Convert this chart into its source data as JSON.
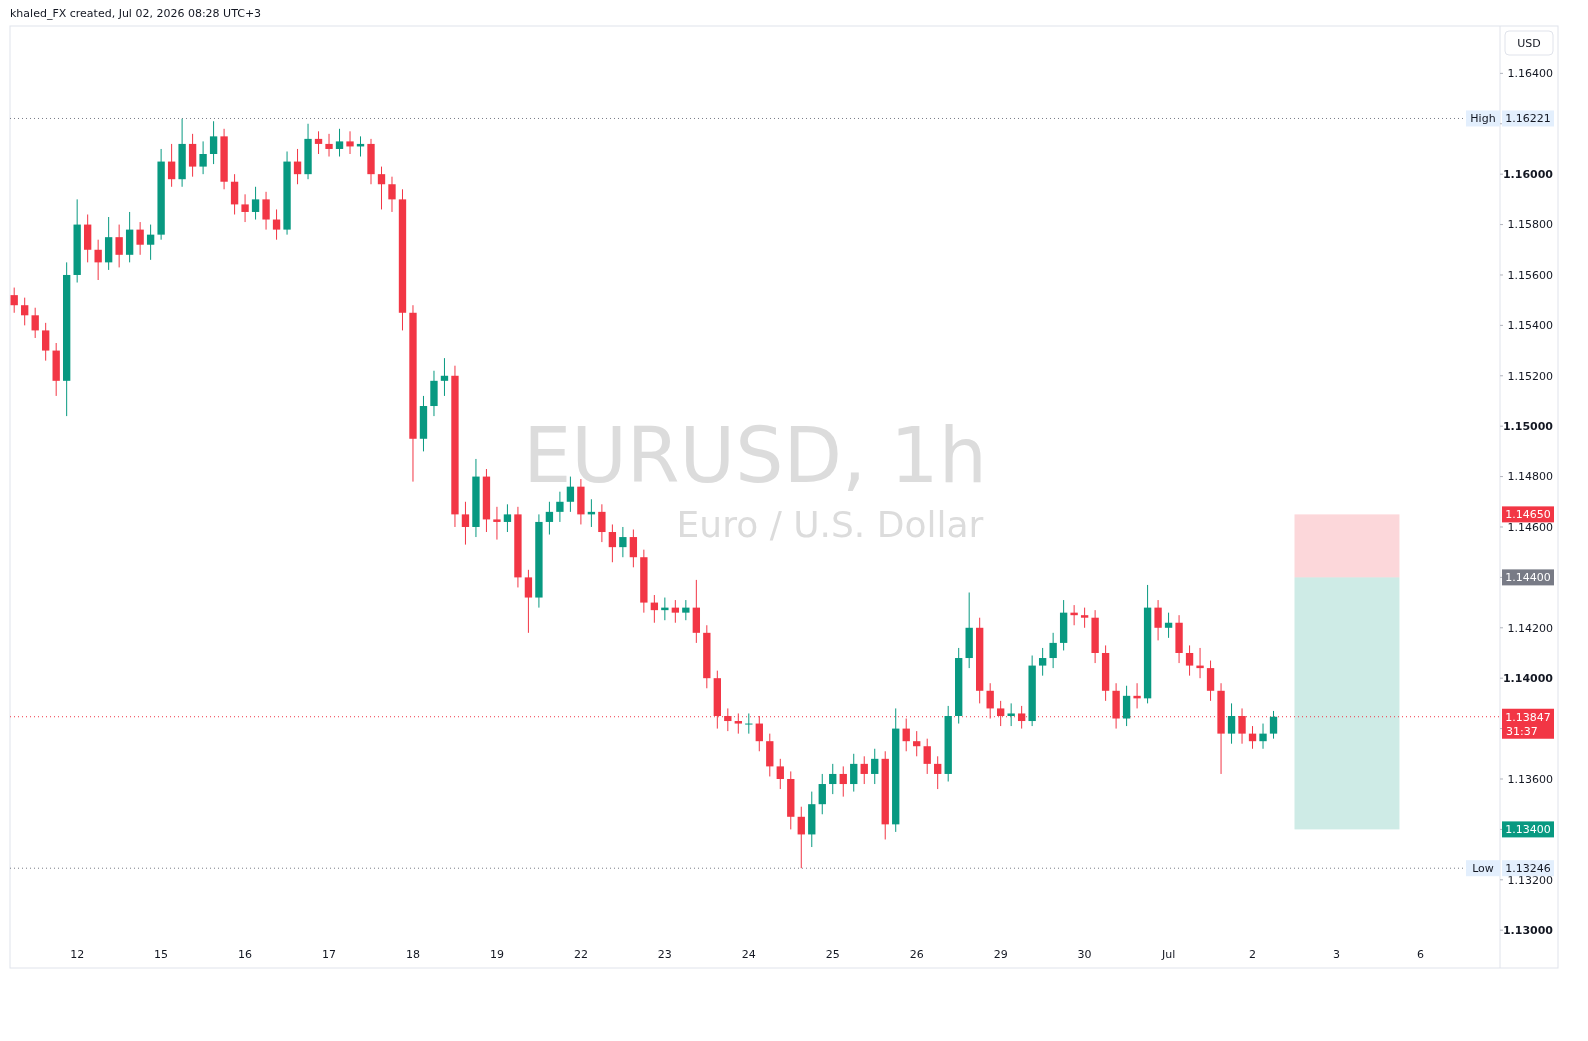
{
  "chart_data": {
    "type": "candlestick",
    "title": "EURUSD, 1h",
    "subtitle": "Euro / U.S. Dollar",
    "annotations": [
      "khaled_FX created, Jul 02, 2026 08:28 UTC+3",
      "USD",
      {
        "text": "High",
        "y": 1.16221
      },
      {
        "text": "Low",
        "y": 1.13246
      },
      "31:37",
      "1.14400",
      "1.14650",
      "1.13400"
    ],
    "categories": [
      null,
      null,
      null,
      null,
      null,
      null,
      "12",
      null,
      null,
      null,
      null,
      null,
      null,
      null,
      "15",
      null,
      null,
      null,
      null,
      null,
      null,
      null,
      "16",
      null,
      null,
      null,
      null,
      null,
      null,
      null,
      "17",
      null,
      null,
      null,
      null,
      null,
      null,
      null,
      "18",
      null,
      null,
      null,
      null,
      null,
      null,
      null,
      "19",
      null,
      null,
      null,
      null,
      null,
      null,
      null,
      "22",
      null,
      null,
      null,
      null,
      null,
      null,
      null,
      "23",
      null,
      null,
      null,
      null,
      null,
      null,
      null,
      "24",
      null,
      null,
      null,
      null,
      null,
      null,
      null,
      "25",
      null,
      null,
      null,
      null,
      null,
      null,
      null,
      "26",
      null,
      null,
      null,
      null,
      null,
      null,
      null,
      "29",
      null,
      null,
      null,
      null,
      null,
      null,
      null,
      "30",
      null,
      null,
      null,
      null,
      null,
      null,
      null,
      "Jul",
      null,
      null,
      null,
      null,
      null,
      null,
      null,
      "2",
      null,
      null,
      null,
      null,
      null,
      null,
      null,
      "3",
      null,
      null,
      null,
      null,
      null,
      null,
      null,
      "6",
      null,
      null,
      null,
      null,
      null,
      null,
      null
    ],
    "ohlc": [
      [
        1.1552,
        1.1555,
        1.1545,
        1.1548
      ],
      [
        1.1548,
        1.1551,
        1.154,
        1.1544
      ],
      [
        1.1544,
        1.1547,
        1.1535,
        1.1538
      ],
      [
        1.1538,
        1.1541,
        1.1526,
        1.153
      ],
      [
        1.153,
        1.1533,
        1.1512,
        1.1518
      ],
      [
        1.1518,
        1.1565,
        1.1504,
        1.156
      ],
      [
        1.156,
        1.159,
        1.1557,
        1.158
      ],
      [
        1.158,
        1.1584,
        1.1565,
        1.157
      ],
      [
        1.157,
        1.1574,
        1.1558,
        1.1565
      ],
      [
        1.1565,
        1.1583,
        1.1562,
        1.1575
      ],
      [
        1.1575,
        1.158,
        1.1563,
        1.1568
      ],
      [
        1.1568,
        1.1585,
        1.1565,
        1.1578
      ],
      [
        1.1578,
        1.1581,
        1.1568,
        1.1572
      ],
      [
        1.1572,
        1.158,
        1.1566,
        1.1576
      ],
      [
        1.1576,
        1.161,
        1.1574,
        1.1605
      ],
      [
        1.1605,
        1.1612,
        1.1595,
        1.1598
      ],
      [
        1.1598,
        1.1622,
        1.1595,
        1.1612
      ],
      [
        1.1612,
        1.1616,
        1.1599,
        1.1603
      ],
      [
        1.1603,
        1.1613,
        1.16,
        1.1608
      ],
      [
        1.1608,
        1.1621,
        1.1604,
        1.1615
      ],
      [
        1.1615,
        1.1618,
        1.1594,
        1.1597
      ],
      [
        1.1597,
        1.16,
        1.1584,
        1.1588
      ],
      [
        1.1588,
        1.1592,
        1.1581,
        1.1585
      ],
      [
        1.1585,
        1.1595,
        1.1582,
        1.159
      ],
      [
        1.159,
        1.1593,
        1.1578,
        1.1582
      ],
      [
        1.1582,
        1.1586,
        1.1574,
        1.1578
      ],
      [
        1.1578,
        1.1609,
        1.1576,
        1.1605
      ],
      [
        1.1605,
        1.161,
        1.1596,
        1.16
      ],
      [
        1.16,
        1.162,
        1.1598,
        1.1614
      ],
      [
        1.1614,
        1.1617,
        1.1608,
        1.1612
      ],
      [
        1.1612,
        1.1616,
        1.1607,
        1.161
      ],
      [
        1.161,
        1.1618,
        1.1607,
        1.1613
      ],
      [
        1.1613,
        1.1617,
        1.1608,
        1.1611
      ],
      [
        1.1611,
        1.1615,
        1.1607,
        1.1612
      ],
      [
        1.1612,
        1.1614,
        1.1596,
        1.16
      ],
      [
        1.16,
        1.1603,
        1.1586,
        1.1596
      ],
      [
        1.1596,
        1.1599,
        1.1585,
        1.159
      ],
      [
        1.159,
        1.1594,
        1.1538,
        1.1545
      ],
      [
        1.1545,
        1.1548,
        1.1478,
        1.1495
      ],
      [
        1.1495,
        1.1512,
        1.149,
        1.1508
      ],
      [
        1.1508,
        1.1522,
        1.1504,
        1.1518
      ],
      [
        1.1518,
        1.1527,
        1.1512,
        1.152
      ],
      [
        1.152,
        1.1524,
        1.146,
        1.1465
      ],
      [
        1.1465,
        1.147,
        1.1453,
        1.146
      ],
      [
        1.146,
        1.1487,
        1.1456,
        1.148
      ],
      [
        1.148,
        1.1483,
        1.1458,
        1.1463
      ],
      [
        1.1463,
        1.1468,
        1.1455,
        1.1462
      ],
      [
        1.1462,
        1.1469,
        1.1458,
        1.1465
      ],
      [
        1.1465,
        1.1468,
        1.1436,
        1.144
      ],
      [
        1.144,
        1.1443,
        1.1418,
        1.1432
      ],
      [
        1.1432,
        1.1465,
        1.1428,
        1.1462
      ],
      [
        1.1462,
        1.147,
        1.1457,
        1.1466
      ],
      [
        1.1466,
        1.1474,
        1.1462,
        1.147
      ],
      [
        1.147,
        1.148,
        1.1466,
        1.1476
      ],
      [
        1.1476,
        1.1479,
        1.1461,
        1.1465
      ],
      [
        1.1465,
        1.1471,
        1.146,
        1.1466
      ],
      [
        1.1466,
        1.1469,
        1.1454,
        1.1458
      ],
      [
        1.1458,
        1.1461,
        1.1446,
        1.1452
      ],
      [
        1.1452,
        1.146,
        1.1448,
        1.1456
      ],
      [
        1.1456,
        1.1459,
        1.1444,
        1.1448
      ],
      [
        1.1448,
        1.1451,
        1.1426,
        1.143
      ],
      [
        1.143,
        1.1433,
        1.1422,
        1.1427
      ],
      [
        1.1427,
        1.1432,
        1.1423,
        1.1428
      ],
      [
        1.1428,
        1.1431,
        1.1422,
        1.1426
      ],
      [
        1.1426,
        1.1431,
        1.1423,
        1.1428
      ],
      [
        1.1428,
        1.1439,
        1.1414,
        1.1418
      ],
      [
        1.1418,
        1.1421,
        1.1396,
        1.14
      ],
      [
        1.14,
        1.1403,
        1.138,
        1.1385
      ],
      [
        1.1385,
        1.1388,
        1.1379,
        1.1383
      ],
      [
        1.1383,
        1.1386,
        1.1378,
        1.1382
      ],
      [
        1.1382,
        1.1386,
        1.1378,
        1.1382
      ],
      [
        1.1382,
        1.1385,
        1.1371,
        1.1375
      ],
      [
        1.1375,
        1.1378,
        1.1361,
        1.1365
      ],
      [
        1.1365,
        1.1368,
        1.1356,
        1.136
      ],
      [
        1.136,
        1.1363,
        1.134,
        1.1345
      ],
      [
        1.1345,
        1.1349,
        1.13246,
        1.1338
      ],
      [
        1.1338,
        1.1355,
        1.1333,
        1.135
      ],
      [
        1.135,
        1.1362,
        1.1346,
        1.1358
      ],
      [
        1.1358,
        1.1366,
        1.1354,
        1.1362
      ],
      [
        1.1362,
        1.1365,
        1.1353,
        1.1358
      ],
      [
        1.1358,
        1.137,
        1.1355,
        1.1366
      ],
      [
        1.1366,
        1.1369,
        1.1358,
        1.1362
      ],
      [
        1.1362,
        1.1372,
        1.1358,
        1.1368
      ],
      [
        1.1368,
        1.1371,
        1.1336,
        1.1342
      ],
      [
        1.1342,
        1.1388,
        1.1339,
        1.138
      ],
      [
        1.138,
        1.1384,
        1.1371,
        1.1375
      ],
      [
        1.1375,
        1.1379,
        1.1369,
        1.1373
      ],
      [
        1.1373,
        1.1376,
        1.1362,
        1.1366
      ],
      [
        1.1366,
        1.1369,
        1.1356,
        1.1362
      ],
      [
        1.1362,
        1.1389,
        1.1359,
        1.1385
      ],
      [
        1.1385,
        1.1412,
        1.1382,
        1.1408
      ],
      [
        1.1408,
        1.1434,
        1.1404,
        1.142
      ],
      [
        1.142,
        1.1424,
        1.139,
        1.1395
      ],
      [
        1.1395,
        1.1398,
        1.1384,
        1.1388
      ],
      [
        1.1388,
        1.1391,
        1.1381,
        1.1385
      ],
      [
        1.1385,
        1.139,
        1.1381,
        1.1386
      ],
      [
        1.1386,
        1.1389,
        1.138,
        1.1383
      ],
      [
        1.1383,
        1.1409,
        1.1381,
        1.1405
      ],
      [
        1.1405,
        1.1412,
        1.1401,
        1.1408
      ],
      [
        1.1408,
        1.1418,
        1.1404,
        1.1414
      ],
      [
        1.1414,
        1.1431,
        1.1411,
        1.1426
      ],
      [
        1.1426,
        1.1429,
        1.1421,
        1.1425
      ],
      [
        1.1425,
        1.1428,
        1.142,
        1.1424
      ],
      [
        1.1424,
        1.1427,
        1.1406,
        1.141
      ],
      [
        1.141,
        1.1413,
        1.1391,
        1.1395
      ],
      [
        1.1395,
        1.1398,
        1.138,
        1.1384
      ],
      [
        1.1384,
        1.1397,
        1.1381,
        1.1393
      ],
      [
        1.1393,
        1.1398,
        1.1388,
        1.1392
      ],
      [
        1.1392,
        1.1437,
        1.139,
        1.1428
      ],
      [
        1.1428,
        1.1431,
        1.1415,
        1.142
      ],
      [
        1.142,
        1.1426,
        1.1416,
        1.1422
      ],
      [
        1.1422,
        1.1425,
        1.1406,
        1.141
      ],
      [
        1.141,
        1.1413,
        1.1401,
        1.1405
      ],
      [
        1.1405,
        1.1412,
        1.14,
        1.1404
      ],
      [
        1.1404,
        1.1407,
        1.1391,
        1.1395
      ],
      [
        1.1395,
        1.1398,
        1.1362,
        1.1378
      ],
      [
        1.1378,
        1.139,
        1.1374,
        1.1385
      ],
      [
        1.1385,
        1.1388,
        1.1374,
        1.1378
      ],
      [
        1.1378,
        1.1381,
        1.1372,
        1.1375
      ],
      [
        1.1375,
        1.1382,
        1.1372,
        1.1378
      ],
      [
        1.1378,
        1.1387,
        1.1376,
        1.13847
      ],
      null,
      null,
      null,
      null,
      null,
      null,
      null,
      null,
      null,
      null,
      null,
      null,
      null,
      null,
      null,
      null,
      null,
      null,
      null,
      null,
      null
    ],
    "ylim": [
      1.1285,
      1.1658
    ],
    "yticks": [
      {
        "value": 1.13,
        "label": "1.13000"
      },
      {
        "value": 1.132,
        "label": "1.13200"
      },
      {
        "value": 1.134,
        "label": null
      },
      {
        "value": 1.136,
        "label": "1.13600"
      },
      {
        "value": 1.138,
        "label": null
      },
      {
        "value": 1.14,
        "label": "1.14000"
      },
      {
        "value": 1.142,
        "label": "1.14200"
      },
      {
        "value": 1.144,
        "label": null
      },
      {
        "value": 1.146,
        "label": "1.14600"
      },
      {
        "value": 1.148,
        "label": "1.14800"
      },
      {
        "value": 1.15,
        "label": "1.15000"
      },
      {
        "value": 1.152,
        "label": "1.15200"
      },
      {
        "value": 1.154,
        "label": "1.15400"
      },
      {
        "value": 1.156,
        "label": "1.15600"
      },
      {
        "value": 1.158,
        "label": "1.15800"
      },
      {
        "value": 1.16,
        "label": "1.16000"
      },
      {
        "value": 1.162,
        "label": null
      },
      {
        "value": 1.164,
        "label": "1.16400"
      }
    ],
    "ref_lines": [
      {
        "axis": "y",
        "value": 1.16221,
        "label": "1.16221",
        "line_style": "dotted"
      },
      {
        "axis": "y",
        "value": 1.13246,
        "label": "1.13246",
        "line_style": "dotted"
      },
      {
        "axis": "y",
        "value": 1.13847,
        "label": "1.13847",
        "color": "#f23645",
        "line_style": "dotted"
      }
    ],
    "bands": [
      {
        "axis": "y",
        "from": 1.144,
        "to": 1.1465,
        "color": "#f23645"
      },
      {
        "axis": "y",
        "from": 1.144,
        "to": 1.134,
        "color": "#089981"
      }
    ]
  }
}
